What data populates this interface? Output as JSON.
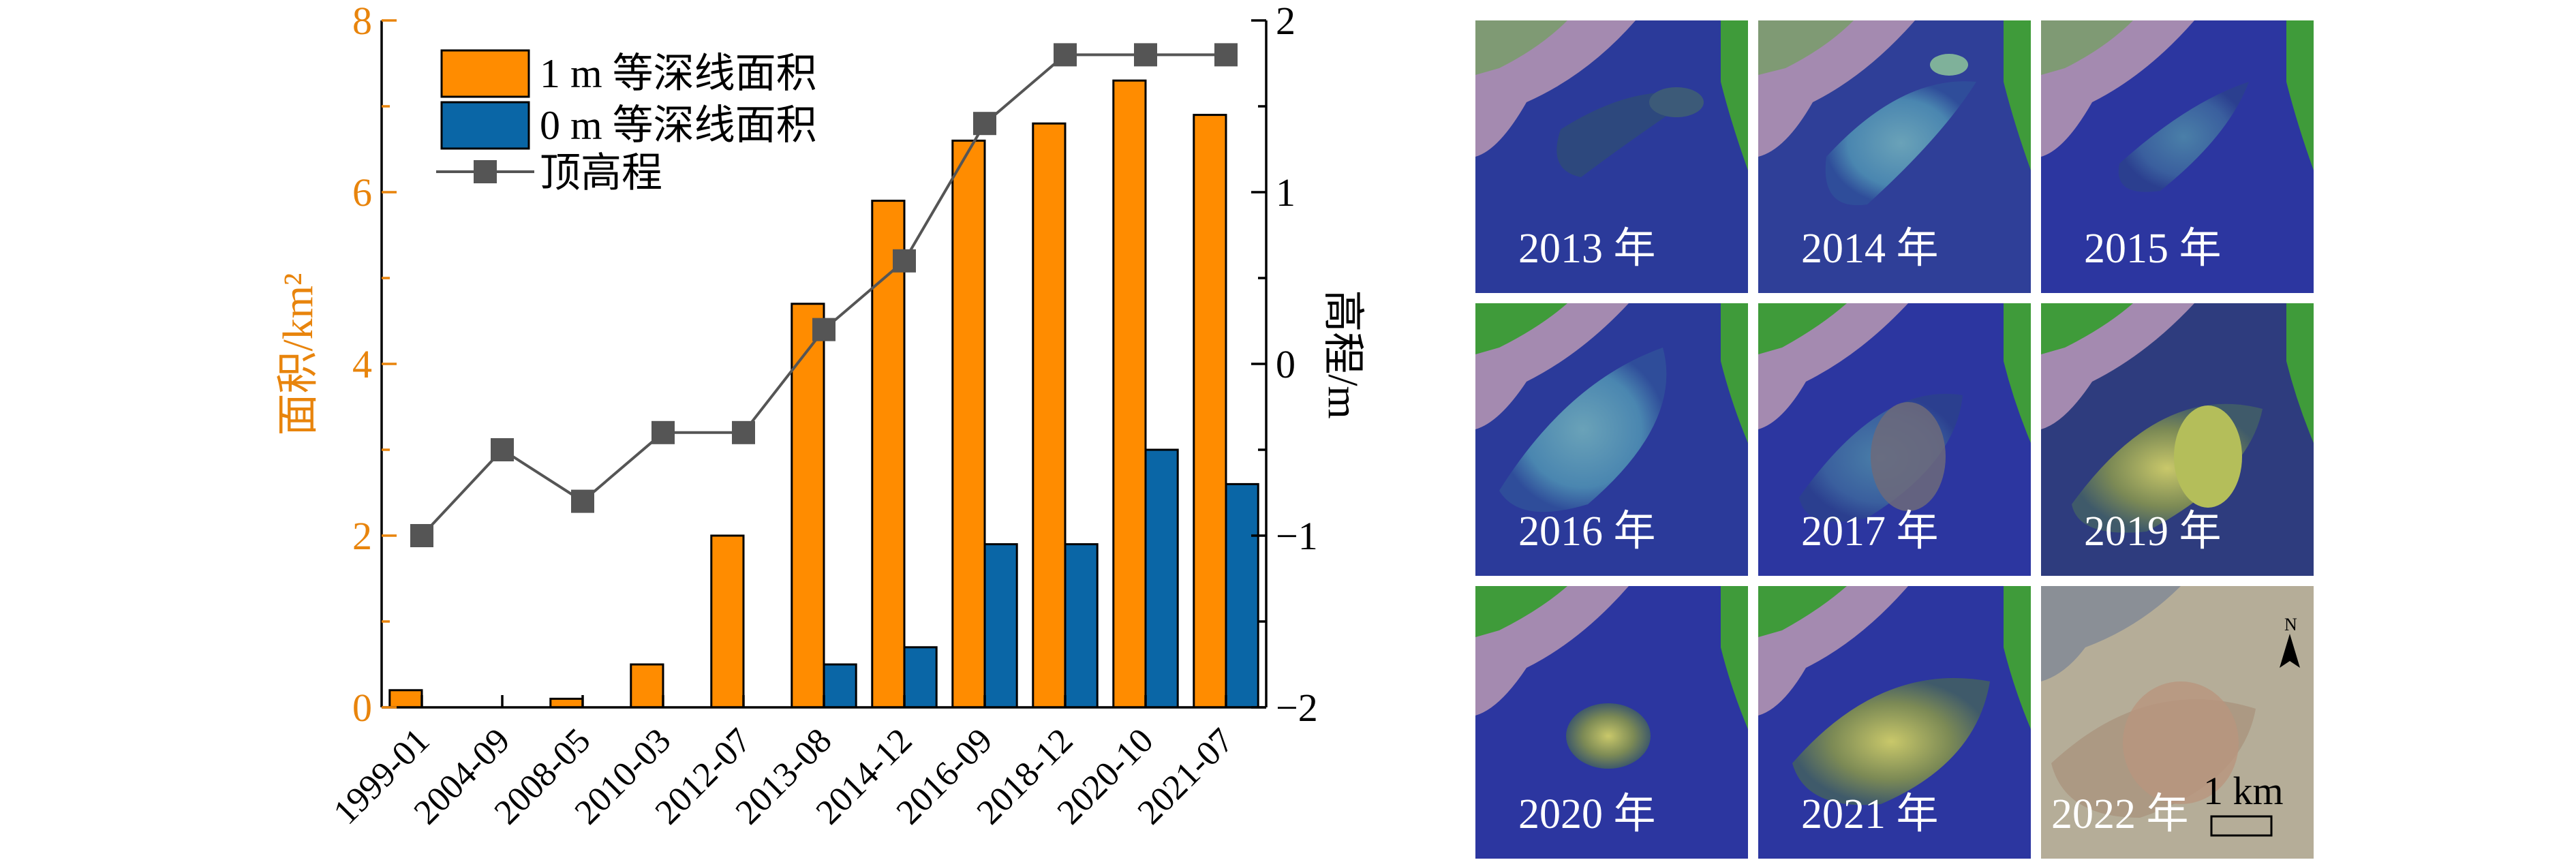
{
  "chart_data": {
    "type": "bar+line",
    "categories": [
      "1999-01",
      "2004-09",
      "2008-05",
      "2010-03",
      "2012-07",
      "2013-08",
      "2014-12",
      "2016-09",
      "2018-12",
      "2020-10",
      "2021-07"
    ],
    "series": [
      {
        "name": "1 m 等深线面积",
        "kind": "bar",
        "axis": "left",
        "color": "#ff8c00",
        "values": [
          0.2,
          0.0,
          0.1,
          0.5,
          2.0,
          4.7,
          5.9,
          6.6,
          6.8,
          7.3,
          6.9
        ]
      },
      {
        "name": "0 m 等深线面积",
        "kind": "bar",
        "axis": "left",
        "color": "#0a66a6",
        "values": [
          0.0,
          0.0,
          0.0,
          0.0,
          0.0,
          0.5,
          0.7,
          1.9,
          1.9,
          3.0,
          2.6
        ]
      },
      {
        "name": "顶高程",
        "kind": "line",
        "axis": "right",
        "color": "#555555",
        "values": [
          -1.0,
          -0.5,
          -0.8,
          -0.4,
          -0.4,
          0.2,
          0.6,
          1.4,
          1.8,
          1.8,
          1.8
        ]
      }
    ],
    "ylabel": "面积/km²",
    "y2label": "高程/m",
    "ylim": [
      0,
      8
    ],
    "y2lim": [
      -2,
      2
    ],
    "yticks": [
      "0",
      "2",
      "4",
      "6",
      "8"
    ],
    "y2ticks": [
      "−2",
      "−1",
      "0",
      "1",
      "2"
    ],
    "legend_position": "top-left"
  },
  "panels": {
    "labels": [
      "2013 年",
      "2014 年",
      "2015 年",
      "2016 年",
      "2017 年",
      "2019 年",
      "2020 年",
      "2021 年",
      "2022 年"
    ],
    "scale_bar_text": "1 km",
    "north_label": "N"
  },
  "colors": {
    "bar_1m": "#ff8c00",
    "bar_0m": "#0a66a6",
    "line": "#555555",
    "left_axis": "#e8840c"
  }
}
